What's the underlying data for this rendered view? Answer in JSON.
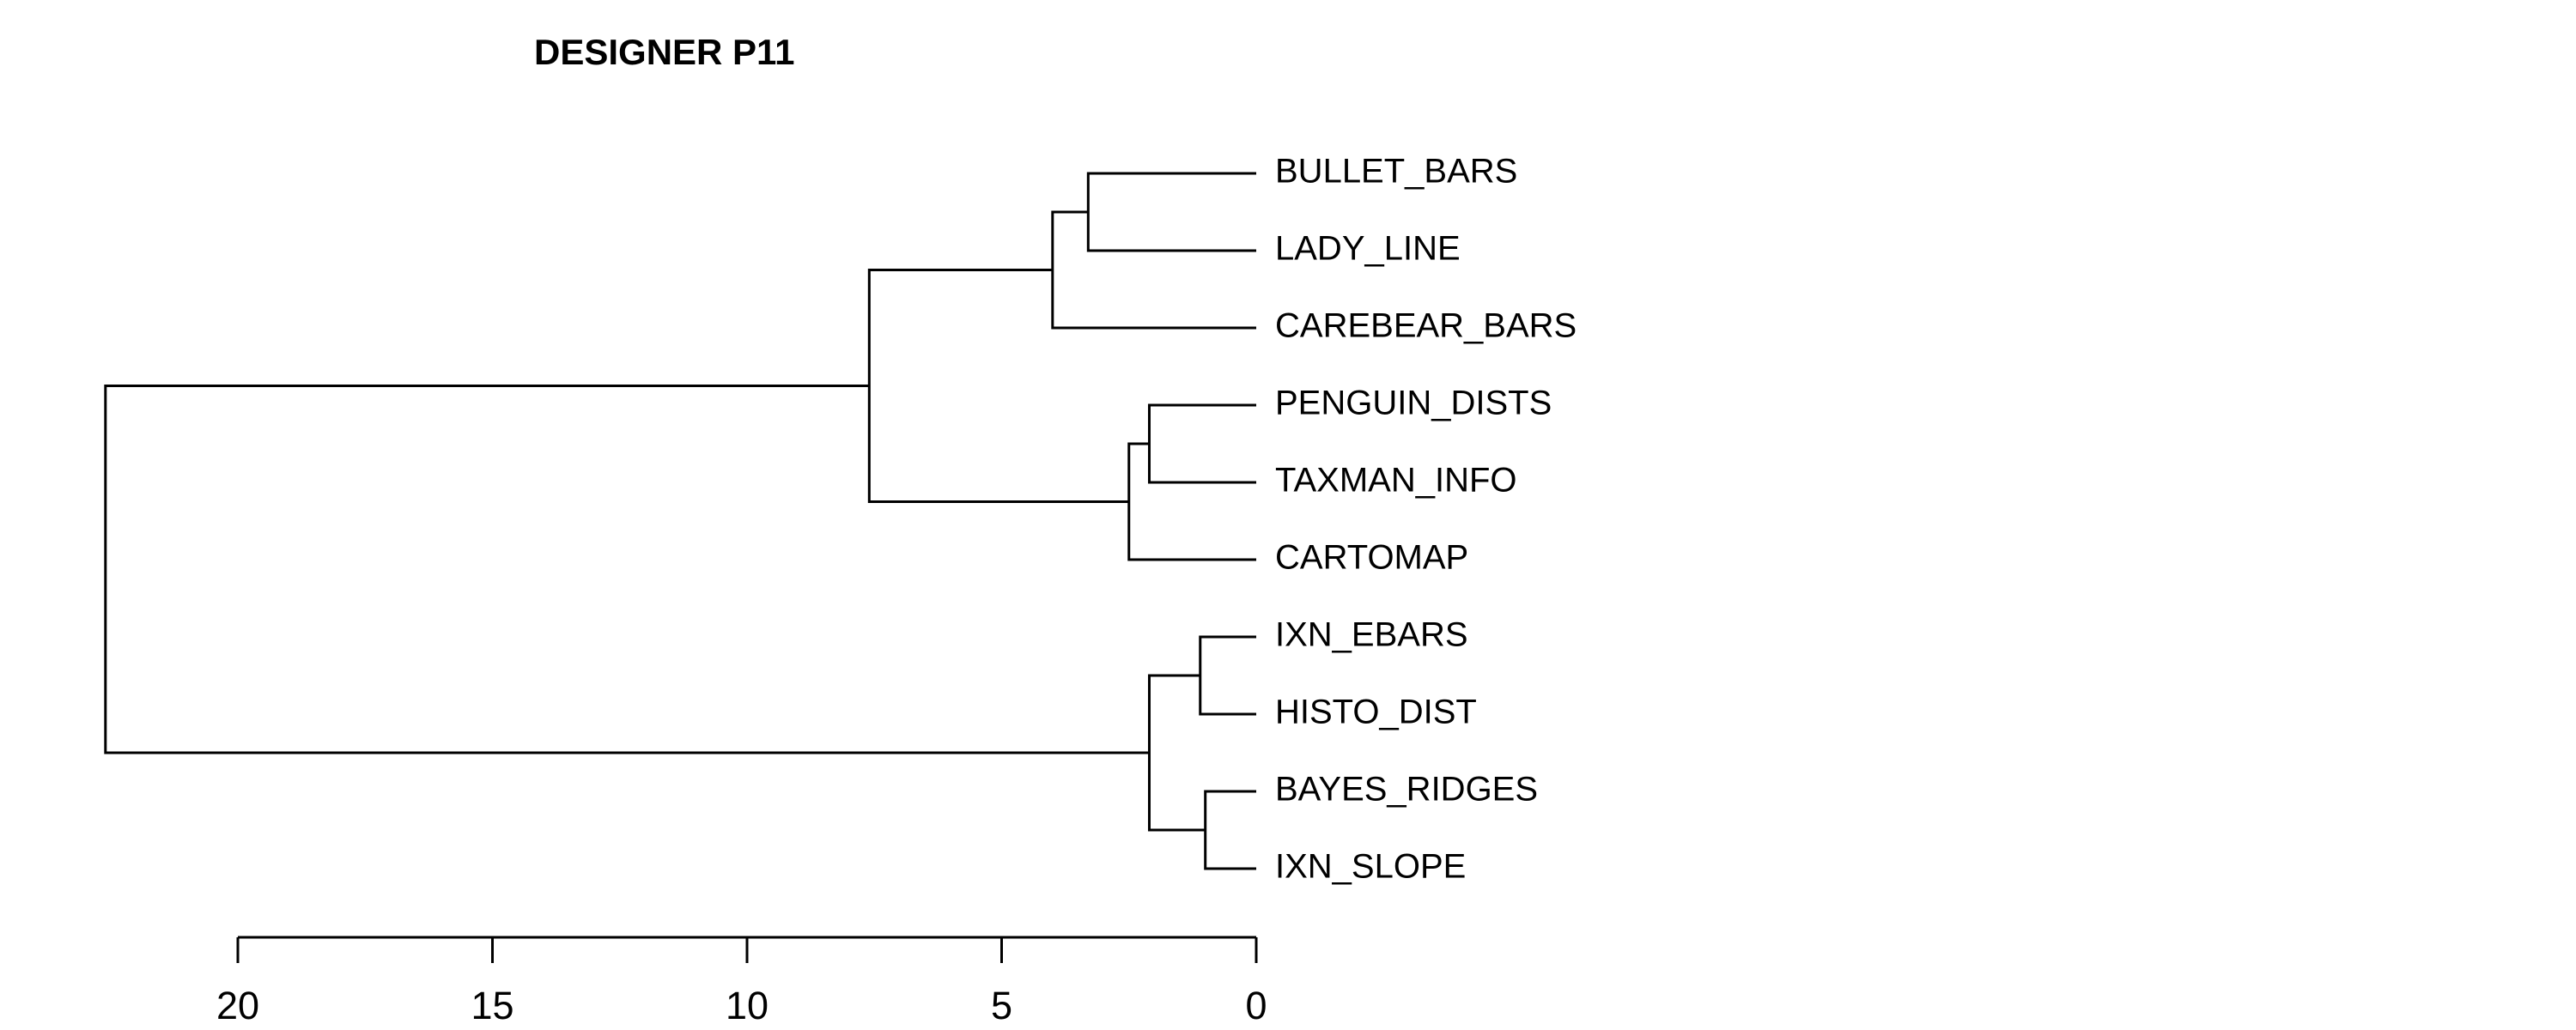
{
  "chart_data": {
    "type": "dendrogram",
    "orientation": "horizontal",
    "title": "DESIGNER P11",
    "xlabel": "",
    "ylabel": "",
    "xlim": [
      0,
      20
    ],
    "x_reversed": true,
    "ticks": [
      20,
      15,
      10,
      5,
      0
    ],
    "tick_labels": [
      "20",
      "15",
      "10",
      "5",
      "0"
    ],
    "grid": false,
    "leaves": [
      "BULLET_BARS",
      "LADY_LINE",
      "CAREBEAR_BARS",
      "PENGUIN_DISTS",
      "TAXMAN_INFO",
      "CARTOMAP",
      "IXN_EBARS",
      "HISTO_DIST",
      "BAYES_RIDGES",
      "IXN_SLOPE"
    ],
    "merges": [
      {
        "left": "leaf:0",
        "right": "leaf:1",
        "height": 3.3
      },
      {
        "left": "merge:0",
        "right": "leaf:2",
        "height": 4.0
      },
      {
        "left": "leaf:3",
        "right": "leaf:4",
        "height": 2.1
      },
      {
        "left": "merge:2",
        "right": "leaf:5",
        "height": 2.5
      },
      {
        "left": "merge:1",
        "right": "merge:3",
        "height": 7.6
      },
      {
        "left": "leaf:6",
        "right": "leaf:7",
        "height": 1.1
      },
      {
        "left": "leaf:8",
        "right": "leaf:9",
        "height": 1.0
      },
      {
        "left": "merge:5",
        "right": "merge:6",
        "height": 2.1
      },
      {
        "left": "merge:4",
        "right": "merge:7",
        "height": 22.6
      }
    ]
  }
}
